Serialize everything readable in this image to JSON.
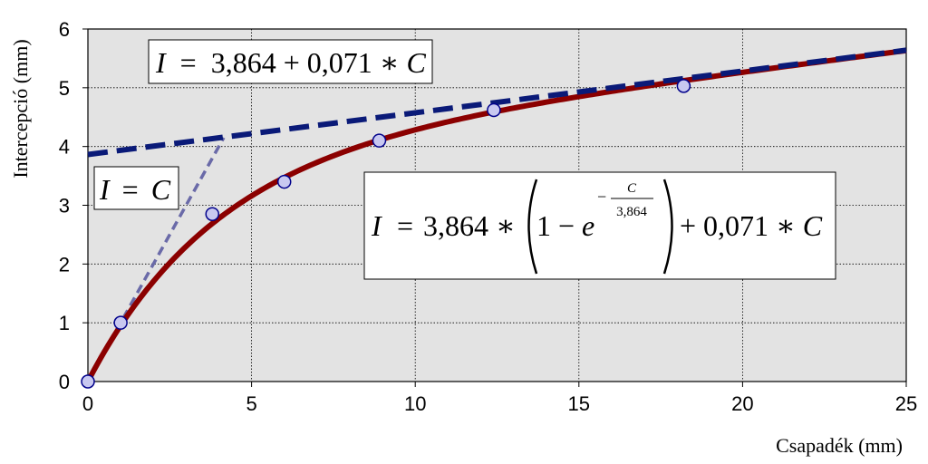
{
  "chart_data": {
    "type": "line",
    "xlabel": "Csapadék (mm)",
    "ylabel": "Intercepció (mm)",
    "xlim": [
      0,
      25
    ],
    "ylim": [
      0,
      6
    ],
    "x_ticks": [
      0,
      5,
      10,
      15,
      20,
      25
    ],
    "y_ticks": [
      0,
      1,
      2,
      3,
      4,
      5,
      6
    ],
    "grid": true,
    "plot_background": "#e3e3e3",
    "points": {
      "x": [
        0,
        1.0,
        3.8,
        6.0,
        8.9,
        12.4,
        18.2
      ],
      "y": [
        0,
        1.0,
        2.85,
        3.4,
        4.1,
        4.62,
        5.03
      ],
      "color": "#c8c8f0",
      "edge_color": "#00008b"
    },
    "series": [
      {
        "type": "line",
        "style": "solid",
        "color": "#8b0000",
        "formula": {
          "a": 3.864,
          "b": 0.071
        }
      },
      {
        "type": "line",
        "style": "dashed",
        "color": "#0a1a78",
        "formula": {
          "intercept": 3.864,
          "slope": 0.071
        }
      },
      {
        "type": "line",
        "style": "dashed",
        "color": "#6a6aa8",
        "x": [
          0,
          4.15
        ],
        "y": [
          0,
          4.15
        ]
      }
    ],
    "annotations": {
      "linear": {
        "lhs": "I",
        "eqsign": "=",
        "rhs": "3,864 + 0,071 ∗ ",
        "var": "C"
      },
      "identity": {
        "lhs": "I",
        "eqsign": "=",
        "rhs": "C"
      },
      "exponential": {
        "lhs": "I",
        "eqsign": "=",
        "coef": "3,864 ∗",
        "one_minus": "1 − ",
        "base": "e",
        "exp_minus": "−",
        "exp_num": "C",
        "exp_den": "3,864",
        "tail": "+ 0,071 ∗ ",
        "var": "C"
      }
    }
  }
}
